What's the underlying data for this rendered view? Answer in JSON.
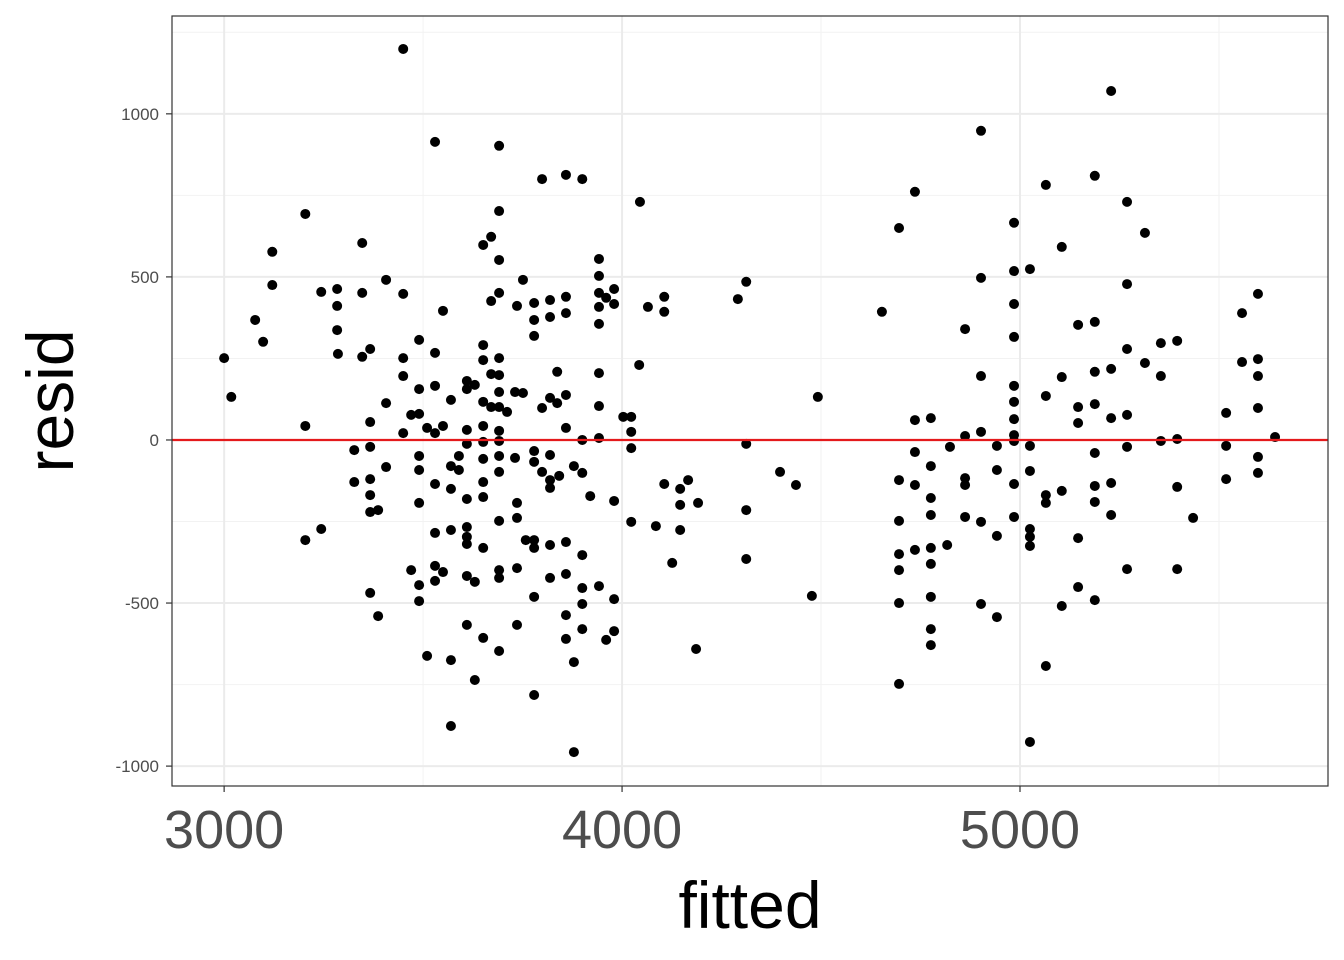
{
  "chart_data": {
    "type": "scatter",
    "xlabel": "fitted",
    "ylabel": "resid",
    "xlim": [
      2869,
      5774
    ],
    "ylim": [
      -1061,
      1300
    ],
    "xticks": [
      3000,
      4000,
      5000
    ],
    "xtick_labels": [
      "3000",
      "4000",
      "5000"
    ],
    "yticks": [
      -1000,
      -500,
      0,
      500,
      1000
    ],
    "ytick_labels": [
      "-1000",
      "-500",
      "0",
      "500",
      "1000"
    ],
    "grid": true,
    "theme": "bw",
    "point_color": "#000000",
    "reference_line": {
      "y": 0,
      "color": "#e41a1c"
    },
    "points": [
      [
        3000,
        251
      ],
      [
        3018,
        132
      ],
      [
        3078,
        368
      ],
      [
        3098,
        301
      ],
      [
        3121,
        577
      ],
      [
        3121,
        475
      ],
      [
        3204,
        693
      ],
      [
        3204,
        43
      ],
      [
        3204,
        -307
      ],
      [
        3244,
        454
      ],
      [
        3244,
        -273
      ],
      [
        3284,
        463
      ],
      [
        3284,
        411
      ],
      [
        3284,
        337
      ],
      [
        3286,
        264
      ],
      [
        3327,
        -31
      ],
      [
        3327,
        -129
      ],
      [
        3347,
        604
      ],
      [
        3347,
        451
      ],
      [
        3347,
        255
      ],
      [
        3367,
        279
      ],
      [
        3367,
        55
      ],
      [
        3367,
        -21
      ],
      [
        3367,
        -120
      ],
      [
        3367,
        -169
      ],
      [
        3367,
        -221
      ],
      [
        3367,
        -469
      ],
      [
        3387,
        -215
      ],
      [
        3387,
        -540
      ],
      [
        3407,
        491
      ],
      [
        3407,
        113
      ],
      [
        3407,
        -83
      ],
      [
        3450,
        1199
      ],
      [
        3450,
        448
      ],
      [
        3450,
        251
      ],
      [
        3450,
        196
      ],
      [
        3450,
        21
      ],
      [
        3470,
        77
      ],
      [
        3470,
        -399
      ],
      [
        3490,
        307
      ],
      [
        3490,
        156
      ],
      [
        3490,
        80
      ],
      [
        3490,
        -49
      ],
      [
        3490,
        -92
      ],
      [
        3490,
        -193
      ],
      [
        3490,
        -445
      ],
      [
        3490,
        -494
      ],
      [
        3510,
        37
      ],
      [
        3510,
        -662
      ],
      [
        3530,
        914
      ],
      [
        3530,
        267
      ],
      [
        3530,
        166
      ],
      [
        3530,
        21
      ],
      [
        3530,
        -135
      ],
      [
        3530,
        -285
      ],
      [
        3530,
        -386
      ],
      [
        3530,
        -432
      ],
      [
        3550,
        396
      ],
      [
        3550,
        43
      ],
      [
        3550,
        -405
      ],
      [
        3570,
        123
      ],
      [
        3570,
        -80
      ],
      [
        3570,
        -150
      ],
      [
        3570,
        -276
      ],
      [
        3570,
        -675
      ],
      [
        3570,
        -877
      ],
      [
        3590,
        -49
      ],
      [
        3590,
        -92
      ],
      [
        3610,
        181
      ],
      [
        3610,
        156
      ],
      [
        3610,
        31
      ],
      [
        3610,
        -12
      ],
      [
        3610,
        -181
      ],
      [
        3610,
        -267
      ],
      [
        3610,
        -297
      ],
      [
        3610,
        -319
      ],
      [
        3610,
        -417
      ],
      [
        3610,
        -567
      ],
      [
        3630,
        169
      ],
      [
        3630,
        -435
      ],
      [
        3630,
        -736
      ],
      [
        3651,
        598
      ],
      [
        3651,
        291
      ],
      [
        3651,
        245
      ],
      [
        3651,
        117
      ],
      [
        3651,
        43
      ],
      [
        3651,
        -6
      ],
      [
        3651,
        -58
      ],
      [
        3651,
        -129
      ],
      [
        3651,
        -175
      ],
      [
        3651,
        -331
      ],
      [
        3651,
        -607
      ],
      [
        3671,
        623
      ],
      [
        3671,
        426
      ],
      [
        3671,
        202
      ],
      [
        3671,
        101
      ],
      [
        3691,
        902
      ],
      [
        3691,
        702
      ],
      [
        3691,
        552
      ],
      [
        3691,
        451
      ],
      [
        3691,
        251
      ],
      [
        3691,
        199
      ],
      [
        3691,
        147
      ],
      [
        3691,
        101
      ],
      [
        3691,
        28
      ],
      [
        3691,
        -3
      ],
      [
        3691,
        -49
      ],
      [
        3691,
        -98
      ],
      [
        3691,
        -248
      ],
      [
        3691,
        -399
      ],
      [
        3691,
        -423
      ],
      [
        3691,
        -647
      ],
      [
        3711,
        86
      ],
      [
        3731,
        147
      ],
      [
        3731,
        -55
      ],
      [
        3736,
        411
      ],
      [
        3736,
        -193
      ],
      [
        3736,
        -239
      ],
      [
        3736,
        -393
      ],
      [
        3736,
        -567
      ],
      [
        3751,
        491
      ],
      [
        3751,
        144
      ],
      [
        3758,
        -307
      ],
      [
        3779,
        420
      ],
      [
        3779,
        368
      ],
      [
        3779,
        319
      ],
      [
        3779,
        -34
      ],
      [
        3779,
        -67
      ],
      [
        3779,
        -307
      ],
      [
        3779,
        -331
      ],
      [
        3779,
        -481
      ],
      [
        3779,
        -782
      ],
      [
        3799,
        800
      ],
      [
        3799,
        98
      ],
      [
        3799,
        -98
      ],
      [
        3819,
        429
      ],
      [
        3819,
        377
      ],
      [
        3819,
        129
      ],
      [
        3819,
        -46
      ],
      [
        3819,
        -123
      ],
      [
        3819,
        -147
      ],
      [
        3819,
        -322
      ],
      [
        3819,
        -423
      ],
      [
        3837,
        209
      ],
      [
        3837,
        113
      ],
      [
        3842,
        -110
      ],
      [
        3859,
        813
      ],
      [
        3859,
        439
      ],
      [
        3859,
        389
      ],
      [
        3859,
        138
      ],
      [
        3859,
        37
      ],
      [
        3859,
        -313
      ],
      [
        3859,
        -411
      ],
      [
        3859,
        -537
      ],
      [
        3859,
        -610
      ],
      [
        3879,
        -80
      ],
      [
        3879,
        -681
      ],
      [
        3879,
        -957
      ],
      [
        3900,
        800
      ],
      [
        3900,
        0
      ],
      [
        3900,
        -101
      ],
      [
        3900,
        -353
      ],
      [
        3900,
        -454
      ],
      [
        3900,
        -503
      ],
      [
        3900,
        -580
      ],
      [
        3920,
        -172
      ],
      [
        3942,
        555
      ],
      [
        3942,
        503
      ],
      [
        3942,
        451
      ],
      [
        3942,
        408
      ],
      [
        3942,
        356
      ],
      [
        3942,
        205
      ],
      [
        3942,
        104
      ],
      [
        3942,
        6
      ],
      [
        3942,
        -448
      ],
      [
        3960,
        436
      ],
      [
        3960,
        -613
      ],
      [
        3980,
        463
      ],
      [
        3980,
        417
      ],
      [
        3980,
        -187
      ],
      [
        3980,
        -488
      ],
      [
        3980,
        -586
      ],
      [
        4003,
        71
      ],
      [
        4023,
        71
      ],
      [
        4023,
        25
      ],
      [
        4023,
        -25
      ],
      [
        4023,
        -251
      ],
      [
        4043,
        230
      ],
      [
        4045,
        730
      ],
      [
        4065,
        408
      ],
      [
        4085,
        -264
      ],
      [
        4106,
        439
      ],
      [
        4106,
        393
      ],
      [
        4106,
        -135
      ],
      [
        4126,
        -377
      ],
      [
        4146,
        -150
      ],
      [
        4146,
        -199
      ],
      [
        4146,
        -276
      ],
      [
        4166,
        -123
      ],
      [
        4186,
        -641
      ],
      [
        4191,
        -193
      ],
      [
        4291,
        432
      ],
      [
        4312,
        485
      ],
      [
        4312,
        -12
      ],
      [
        4312,
        -215
      ],
      [
        4312,
        -365
      ],
      [
        4397,
        -98
      ],
      [
        4437,
        -138
      ],
      [
        4477,
        -478
      ],
      [
        4492,
        132
      ],
      [
        4653,
        393
      ],
      [
        4696,
        650
      ],
      [
        4696,
        -123
      ],
      [
        4696,
        -248
      ],
      [
        4696,
        -350
      ],
      [
        4696,
        -399
      ],
      [
        4696,
        -500
      ],
      [
        4696,
        -748
      ],
      [
        4736,
        761
      ],
      [
        4736,
        61
      ],
      [
        4736,
        -37
      ],
      [
        4736,
        -138
      ],
      [
        4736,
        -337
      ],
      [
        4776,
        67
      ],
      [
        4776,
        -80
      ],
      [
        4776,
        -178
      ],
      [
        4776,
        -230
      ],
      [
        4776,
        -331
      ],
      [
        4776,
        -380
      ],
      [
        4776,
        -481
      ],
      [
        4776,
        -580
      ],
      [
        4776,
        -629
      ],
      [
        4817,
        -322
      ],
      [
        4824,
        -21
      ],
      [
        4862,
        340
      ],
      [
        4862,
        12
      ],
      [
        4862,
        -117
      ],
      [
        4862,
        -138
      ],
      [
        4862,
        -236
      ],
      [
        4902,
        948
      ],
      [
        4902,
        497
      ],
      [
        4902,
        196
      ],
      [
        4902,
        25
      ],
      [
        4902,
        -251
      ],
      [
        4902,
        -503
      ],
      [
        4942,
        -18
      ],
      [
        4942,
        -92
      ],
      [
        4942,
        -294
      ],
      [
        4942,
        -543
      ],
      [
        4985,
        666
      ],
      [
        4985,
        518
      ],
      [
        4985,
        417
      ],
      [
        4985,
        316
      ],
      [
        4985,
        166
      ],
      [
        4985,
        117
      ],
      [
        4985,
        64
      ],
      [
        4985,
        15
      ],
      [
        4985,
        -3
      ],
      [
        4985,
        -135
      ],
      [
        4985,
        -236
      ],
      [
        5025,
        524
      ],
      [
        5025,
        -18
      ],
      [
        5025,
        -95
      ],
      [
        5025,
        -273
      ],
      [
        5025,
        -297
      ],
      [
        5025,
        -325
      ],
      [
        5025,
        -926
      ],
      [
        5065,
        782
      ],
      [
        5065,
        135
      ],
      [
        5065,
        -169
      ],
      [
        5065,
        -193
      ],
      [
        5065,
        -693
      ],
      [
        5105,
        592
      ],
      [
        5105,
        193
      ],
      [
        5105,
        -156
      ],
      [
        5105,
        -509
      ],
      [
        5146,
        353
      ],
      [
        5146,
        101
      ],
      [
        5146,
        52
      ],
      [
        5146,
        -301
      ],
      [
        5146,
        -451
      ],
      [
        5188,
        810
      ],
      [
        5188,
        362
      ],
      [
        5188,
        209
      ],
      [
        5188,
        110
      ],
      [
        5188,
        -40
      ],
      [
        5188,
        -141
      ],
      [
        5188,
        -190
      ],
      [
        5188,
        -491
      ],
      [
        5229,
        1070
      ],
      [
        5229,
        218
      ],
      [
        5229,
        67
      ],
      [
        5229,
        -132
      ],
      [
        5229,
        -230
      ],
      [
        5269,
        730
      ],
      [
        5269,
        478
      ],
      [
        5269,
        279
      ],
      [
        5269,
        77
      ],
      [
        5269,
        -21
      ],
      [
        5269,
        -396
      ],
      [
        5314,
        635
      ],
      [
        5314,
        236
      ],
      [
        5354,
        297
      ],
      [
        5354,
        196
      ],
      [
        5354,
        -3
      ],
      [
        5395,
        304
      ],
      [
        5395,
        3
      ],
      [
        5395,
        -144
      ],
      [
        5395,
        -396
      ],
      [
        5435,
        -239
      ],
      [
        5518,
        83
      ],
      [
        5518,
        -18
      ],
      [
        5518,
        -120
      ],
      [
        5558,
        389
      ],
      [
        5558,
        239
      ],
      [
        5598,
        448
      ],
      [
        5598,
        248
      ],
      [
        5598,
        196
      ],
      [
        5598,
        98
      ],
      [
        5598,
        -52
      ],
      [
        5598,
        -101
      ],
      [
        5641,
        9
      ]
    ]
  }
}
